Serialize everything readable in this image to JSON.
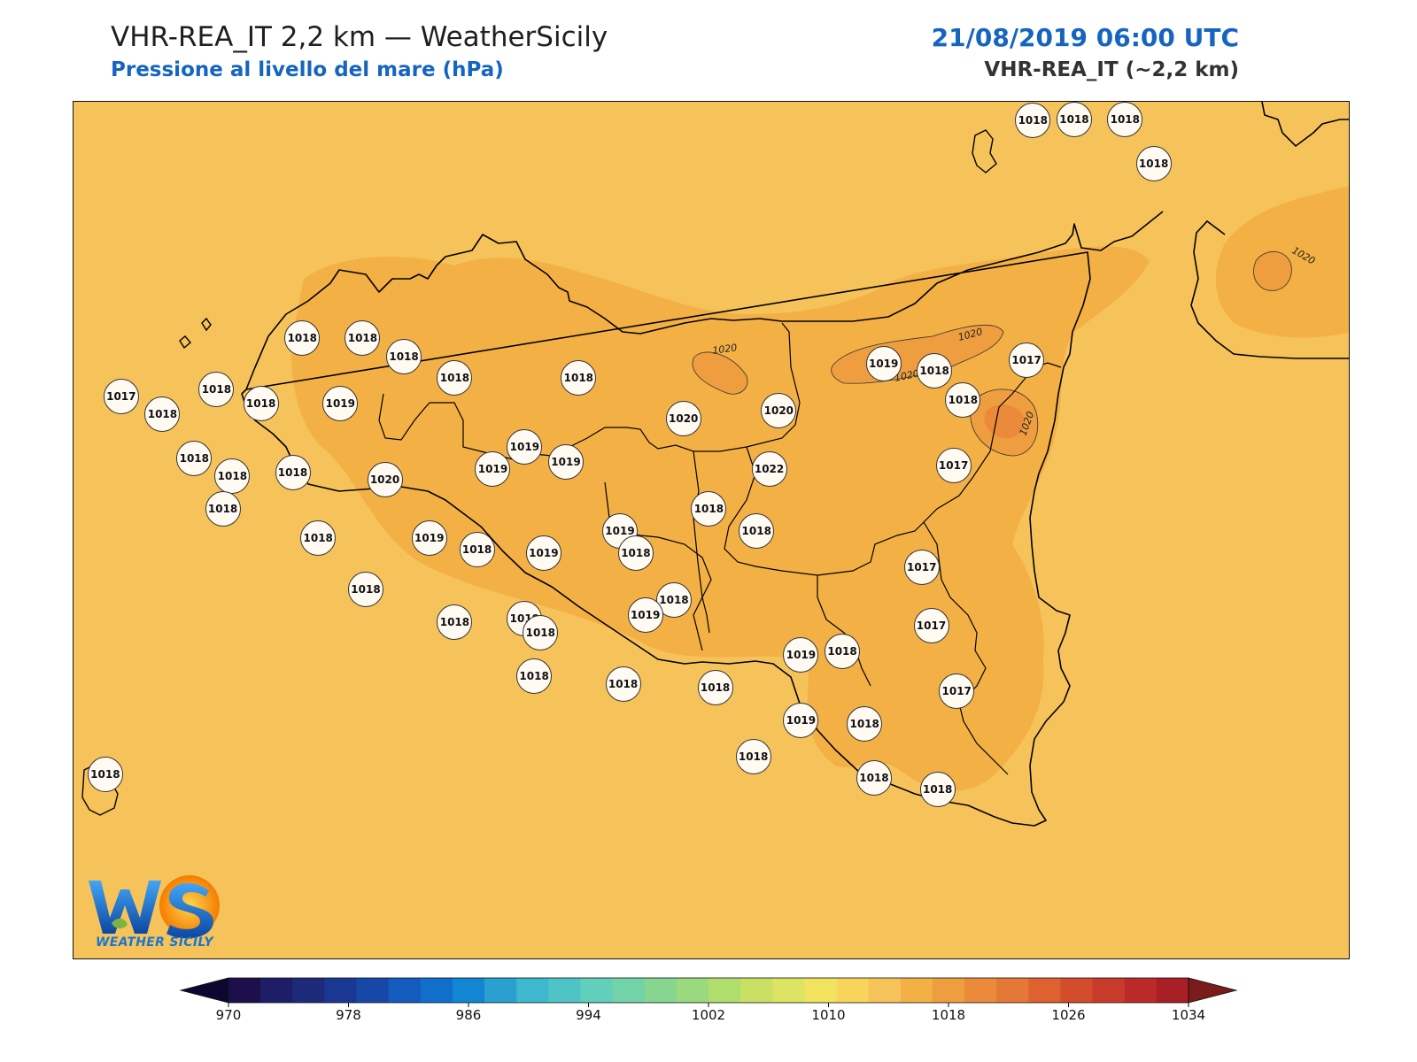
{
  "header": {
    "title": "VHR-REA_IT 2,2 km — WeatherSicily",
    "subtitle": "Pressione al livello del mare (hPa)",
    "datetime": "21/08/2019 06:00 UTC",
    "model": "VHR-REA_IT (~2,2 km)"
  },
  "colors": {
    "background_field": "#f6c35a",
    "field_1018_1020": "#f3b045",
    "field_1020_1022": "#ee9d3f",
    "coastline": "#000000",
    "station_fill": "#fffaf2",
    "title_blue": "#1565c0"
  },
  "map": {
    "contour_labels": [
      "1020",
      "1020",
      "1020",
      "1020",
      "1020"
    ],
    "stations": [
      {
        "value": "1018",
        "lon": 14.85,
        "lat": 38.8
      },
      {
        "value": "1018",
        "lon": 14.98,
        "lat": 38.82
      },
      {
        "value": "1018",
        "lon": 15.14,
        "lat": 38.81
      },
      {
        "value": "1018",
        "lon": 15.23,
        "lat": 38.68
      },
      {
        "value": "1018",
        "lon": 12.55,
        "lat": 38.2
      },
      {
        "value": "1018",
        "lon": 12.74,
        "lat": 38.2
      },
      {
        "value": "1018",
        "lon": 12.87,
        "lat": 38.15
      },
      {
        "value": "1018",
        "lon": 13.03,
        "lat": 38.09
      },
      {
        "value": "1018",
        "lon": 13.42,
        "lat": 38.09
      },
      {
        "value": "1019",
        "lon": 14.38,
        "lat": 38.13
      },
      {
        "value": "1018",
        "lon": 14.54,
        "lat": 38.11
      },
      {
        "value": "1017",
        "lon": 14.83,
        "lat": 38.14
      },
      {
        "value": "1017",
        "lon": 11.98,
        "lat": 38.04
      },
      {
        "value": "1018",
        "lon": 12.28,
        "lat": 38.06
      },
      {
        "value": "1018",
        "lon": 12.11,
        "lat": 37.99
      },
      {
        "value": "1018",
        "lon": 12.42,
        "lat": 38.02
      },
      {
        "value": "1019",
        "lon": 12.67,
        "lat": 38.02
      },
      {
        "value": "1020",
        "lon": 14.05,
        "lat": 38.0
      },
      {
        "value": "1020",
        "lon": 13.75,
        "lat": 37.98
      },
      {
        "value": "1018",
        "lon": 14.63,
        "lat": 38.03
      },
      {
        "value": "1018",
        "lon": 12.21,
        "lat": 37.87
      },
      {
        "value": "1019",
        "lon": 13.25,
        "lat": 37.9
      },
      {
        "value": "1017",
        "lon": 14.6,
        "lat": 37.85
      },
      {
        "value": "1018",
        "lon": 12.33,
        "lat": 37.82
      },
      {
        "value": "1018",
        "lon": 12.52,
        "lat": 37.83
      },
      {
        "value": "1020",
        "lon": 12.81,
        "lat": 37.81
      },
      {
        "value": "1019",
        "lon": 13.15,
        "lat": 37.84
      },
      {
        "value": "1019",
        "lon": 13.38,
        "lat": 37.86
      },
      {
        "value": "1022",
        "lon": 14.02,
        "lat": 37.84
      },
      {
        "value": "1018",
        "lon": 12.3,
        "lat": 37.73
      },
      {
        "value": "1018",
        "lon": 13.83,
        "lat": 37.73
      },
      {
        "value": "1019",
        "lon": 12.95,
        "lat": 37.65
      },
      {
        "value": "1019",
        "lon": 13.55,
        "lat": 37.67
      },
      {
        "value": "1018",
        "lon": 12.6,
        "lat": 37.65
      },
      {
        "value": "1018",
        "lon": 13.1,
        "lat": 37.62
      },
      {
        "value": "1019",
        "lon": 13.31,
        "lat": 37.61
      },
      {
        "value": "1018",
        "lon": 13.6,
        "lat": 37.61
      },
      {
        "value": "1018",
        "lon": 13.98,
        "lat": 37.67
      },
      {
        "value": "1017",
        "lon": 14.5,
        "lat": 37.57
      },
      {
        "value": "1018",
        "lon": 12.75,
        "lat": 37.51
      },
      {
        "value": "1018",
        "lon": 13.72,
        "lat": 37.48
      },
      {
        "value": "1018",
        "lon": 13.03,
        "lat": 37.42
      },
      {
        "value": "1019",
        "lon": 13.25,
        "lat": 37.43
      },
      {
        "value": "1019",
        "lon": 13.63,
        "lat": 37.44
      },
      {
        "value": "1018",
        "lon": 13.3,
        "lat": 37.39
      },
      {
        "value": "1017",
        "lon": 14.53,
        "lat": 37.41
      },
      {
        "value": "1018",
        "lon": 14.25,
        "lat": 37.34
      },
      {
        "value": "1019",
        "lon": 14.12,
        "lat": 37.33
      },
      {
        "value": "1018",
        "lon": 13.28,
        "lat": 37.27
      },
      {
        "value": "1018",
        "lon": 13.56,
        "lat": 37.25
      },
      {
        "value": "1018",
        "lon": 13.85,
        "lat": 37.24
      },
      {
        "value": "1017",
        "lon": 14.61,
        "lat": 37.23
      },
      {
        "value": "1019",
        "lon": 14.12,
        "lat": 37.15
      },
      {
        "value": "1018",
        "lon": 14.32,
        "lat": 37.14
      },
      {
        "value": "1018",
        "lon": 11.93,
        "lat": 37.0
      },
      {
        "value": "1018",
        "lon": 13.97,
        "lat": 37.05
      },
      {
        "value": "1018",
        "lon": 14.35,
        "lat": 36.99
      },
      {
        "value": "1018",
        "lon": 14.55,
        "lat": 36.96
      }
    ]
  },
  "logo": {
    "text": "WEATHER SICILY",
    "mark": "WS"
  },
  "colorbar": {
    "levels": [
      970,
      974,
      978,
      982,
      986,
      990,
      994,
      998,
      1002,
      1006,
      1010,
      1014,
      1018,
      1022,
      1026,
      1030,
      1034
    ],
    "tick_labels": [
      "970",
      "978",
      "986",
      "994",
      "1002",
      "1010",
      "1018",
      "1026",
      "1034"
    ],
    "colors": [
      "#1c0f4b",
      "#1e1e66",
      "#1d2a7a",
      "#1a3891",
      "#1748a8",
      "#135bbd",
      "#0f6fcb",
      "#1286d2",
      "#2aa0d0",
      "#3db8cf",
      "#4ec4c6",
      "#62cfbb",
      "#72d3a8",
      "#86d690",
      "#9ad97d",
      "#b0de6d",
      "#c9e064",
      "#dde362",
      "#f1e35e",
      "#f8d45a",
      "#f6c35a",
      "#f3b045",
      "#ee9d3f",
      "#ea8a3a",
      "#e57836",
      "#de6130",
      "#d34c2c",
      "#c83a2a",
      "#bb2a28",
      "#a81f25"
    ],
    "under_color": "#0d0830",
    "over_color": "#7a1b1c"
  }
}
